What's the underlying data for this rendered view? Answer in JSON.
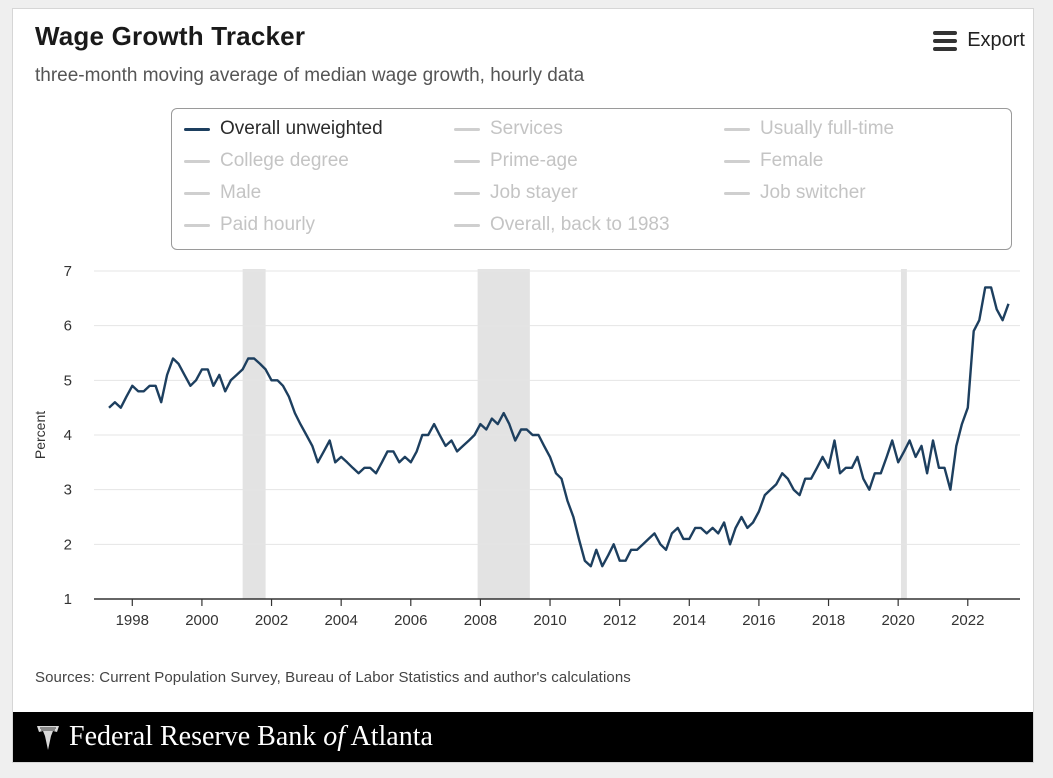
{
  "header": {
    "title": "Wage Growth Tracker",
    "subtitle": "three-month moving average of median wage growth, hourly data",
    "export_label": "Export",
    "export_icon": "hamburger-menu-icon"
  },
  "legend": {
    "items": [
      {
        "label": "Overall unweighted",
        "active": true
      },
      {
        "label": "Services",
        "active": false
      },
      {
        "label": "Usually full-time",
        "active": false
      },
      {
        "label": "College degree",
        "active": false
      },
      {
        "label": "Prime-age",
        "active": false
      },
      {
        "label": "Female",
        "active": false
      },
      {
        "label": "Male",
        "active": false
      },
      {
        "label": "Job stayer",
        "active": false
      },
      {
        "label": "Job switcher",
        "active": false
      },
      {
        "label": "Paid hourly",
        "active": false
      },
      {
        "label": "Overall, back to 1983",
        "active": false
      }
    ]
  },
  "colors": {
    "series": "#1d3f5f",
    "recession": "#e3e3e3",
    "grid": "#e5e5e5",
    "inactive_legend": "#cfcfcf"
  },
  "footer": {
    "source": "Sources: Current Population Survey, Bureau of Labor Statistics and author's calculations",
    "bank_name_prefix": "Federal Reserve Bank ",
    "bank_name_of": "of",
    "bank_name_suffix": " Atlanta",
    "logo_icon": "eagle-logo-icon"
  },
  "chart_data": {
    "type": "line",
    "title": "Wage Growth Tracker",
    "subtitle": "three-month moving average of median wage growth, hourly data",
    "xlabel": "",
    "ylabel": "Percent",
    "ylim": [
      1,
      7
    ],
    "xlim": [
      1996.9,
      2023.5
    ],
    "yticks": [
      1,
      2,
      3,
      4,
      5,
      6,
      7
    ],
    "xticks": [
      1998,
      2000,
      2002,
      2004,
      2006,
      2008,
      2010,
      2012,
      2014,
      2016,
      2018,
      2020,
      2022
    ],
    "grid": "horizontal",
    "legend_position": "top",
    "recessions": [
      [
        2001.17,
        2001.83
      ],
      [
        2007.92,
        2009.42
      ],
      [
        2020.08,
        2020.25
      ]
    ],
    "series": [
      {
        "name": "Overall unweighted",
        "points": [
          [
            1997.33,
            4.5
          ],
          [
            1997.5,
            4.6
          ],
          [
            1997.67,
            4.5
          ],
          [
            1997.83,
            4.7
          ],
          [
            1998.0,
            4.9
          ],
          [
            1998.17,
            4.8
          ],
          [
            1998.33,
            4.8
          ],
          [
            1998.5,
            4.9
          ],
          [
            1998.67,
            4.9
          ],
          [
            1998.83,
            4.6
          ],
          [
            1999.0,
            5.1
          ],
          [
            1999.17,
            5.4
          ],
          [
            1999.33,
            5.3
          ],
          [
            1999.5,
            5.1
          ],
          [
            1999.67,
            4.9
          ],
          [
            1999.83,
            5.0
          ],
          [
            2000.0,
            5.2
          ],
          [
            2000.17,
            5.2
          ],
          [
            2000.33,
            4.9
          ],
          [
            2000.5,
            5.1
          ],
          [
            2000.67,
            4.8
          ],
          [
            2000.83,
            5.0
          ],
          [
            2001.0,
            5.1
          ],
          [
            2001.17,
            5.2
          ],
          [
            2001.33,
            5.4
          ],
          [
            2001.5,
            5.4
          ],
          [
            2001.67,
            5.3
          ],
          [
            2001.83,
            5.2
          ],
          [
            2002.0,
            5.0
          ],
          [
            2002.17,
            5.0
          ],
          [
            2002.33,
            4.9
          ],
          [
            2002.5,
            4.7
          ],
          [
            2002.67,
            4.4
          ],
          [
            2002.83,
            4.2
          ],
          [
            2003.0,
            4.0
          ],
          [
            2003.17,
            3.8
          ],
          [
            2003.33,
            3.5
          ],
          [
            2003.5,
            3.7
          ],
          [
            2003.67,
            3.9
          ],
          [
            2003.83,
            3.5
          ],
          [
            2004.0,
            3.6
          ],
          [
            2004.17,
            3.5
          ],
          [
            2004.33,
            3.4
          ],
          [
            2004.5,
            3.3
          ],
          [
            2004.67,
            3.4
          ],
          [
            2004.83,
            3.4
          ],
          [
            2005.0,
            3.3
          ],
          [
            2005.17,
            3.5
          ],
          [
            2005.33,
            3.7
          ],
          [
            2005.5,
            3.7
          ],
          [
            2005.67,
            3.5
          ],
          [
            2005.83,
            3.6
          ],
          [
            2006.0,
            3.5
          ],
          [
            2006.17,
            3.7
          ],
          [
            2006.33,
            4.0
          ],
          [
            2006.5,
            4.0
          ],
          [
            2006.67,
            4.2
          ],
          [
            2006.83,
            4.0
          ],
          [
            2007.0,
            3.8
          ],
          [
            2007.17,
            3.9
          ],
          [
            2007.33,
            3.7
          ],
          [
            2007.5,
            3.8
          ],
          [
            2007.67,
            3.9
          ],
          [
            2007.83,
            4.0
          ],
          [
            2008.0,
            4.2
          ],
          [
            2008.17,
            4.1
          ],
          [
            2008.33,
            4.3
          ],
          [
            2008.5,
            4.2
          ],
          [
            2008.67,
            4.4
          ],
          [
            2008.83,
            4.2
          ],
          [
            2009.0,
            3.9
          ],
          [
            2009.17,
            4.1
          ],
          [
            2009.33,
            4.1
          ],
          [
            2009.5,
            4.0
          ],
          [
            2009.67,
            4.0
          ],
          [
            2009.83,
            3.8
          ],
          [
            2010.0,
            3.6
          ],
          [
            2010.17,
            3.3
          ],
          [
            2010.33,
            3.2
          ],
          [
            2010.5,
            2.8
          ],
          [
            2010.67,
            2.5
          ],
          [
            2010.83,
            2.1
          ],
          [
            2011.0,
            1.7
          ],
          [
            2011.17,
            1.6
          ],
          [
            2011.33,
            1.9
          ],
          [
            2011.5,
            1.6
          ],
          [
            2011.67,
            1.8
          ],
          [
            2011.83,
            2.0
          ],
          [
            2012.0,
            1.7
          ],
          [
            2012.17,
            1.7
          ],
          [
            2012.33,
            1.9
          ],
          [
            2012.5,
            1.9
          ],
          [
            2012.67,
            2.0
          ],
          [
            2012.83,
            2.1
          ],
          [
            2013.0,
            2.2
          ],
          [
            2013.17,
            2.0
          ],
          [
            2013.33,
            1.9
          ],
          [
            2013.5,
            2.2
          ],
          [
            2013.67,
            2.3
          ],
          [
            2013.83,
            2.1
          ],
          [
            2014.0,
            2.1
          ],
          [
            2014.17,
            2.3
          ],
          [
            2014.33,
            2.3
          ],
          [
            2014.5,
            2.2
          ],
          [
            2014.67,
            2.3
          ],
          [
            2014.83,
            2.2
          ],
          [
            2015.0,
            2.4
          ],
          [
            2015.17,
            2.0
          ],
          [
            2015.33,
            2.3
          ],
          [
            2015.5,
            2.5
          ],
          [
            2015.67,
            2.3
          ],
          [
            2015.83,
            2.4
          ],
          [
            2016.0,
            2.6
          ],
          [
            2016.17,
            2.9
          ],
          [
            2016.33,
            3.0
          ],
          [
            2016.5,
            3.1
          ],
          [
            2016.67,
            3.3
          ],
          [
            2016.83,
            3.2
          ],
          [
            2017.0,
            3.0
          ],
          [
            2017.17,
            2.9
          ],
          [
            2017.33,
            3.2
          ],
          [
            2017.5,
            3.2
          ],
          [
            2017.67,
            3.4
          ],
          [
            2017.83,
            3.6
          ],
          [
            2018.0,
            3.4
          ],
          [
            2018.17,
            3.9
          ],
          [
            2018.33,
            3.3
          ],
          [
            2018.5,
            3.4
          ],
          [
            2018.67,
            3.4
          ],
          [
            2018.83,
            3.6
          ],
          [
            2019.0,
            3.2
          ],
          [
            2019.17,
            3.0
          ],
          [
            2019.33,
            3.3
          ],
          [
            2019.5,
            3.3
          ],
          [
            2019.67,
            3.6
          ],
          [
            2019.83,
            3.9
          ],
          [
            2020.0,
            3.5
          ],
          [
            2020.17,
            3.7
          ],
          [
            2020.33,
            3.9
          ],
          [
            2020.5,
            3.6
          ],
          [
            2020.67,
            3.8
          ],
          [
            2020.83,
            3.3
          ],
          [
            2021.0,
            3.9
          ],
          [
            2021.17,
            3.4
          ],
          [
            2021.33,
            3.4
          ],
          [
            2021.5,
            3.0
          ],
          [
            2021.67,
            3.8
          ],
          [
            2021.83,
            4.2
          ],
          [
            2022.0,
            4.5
          ],
          [
            2022.17,
            5.9
          ],
          [
            2022.33,
            6.1
          ],
          [
            2022.5,
            6.7
          ],
          [
            2022.67,
            6.7
          ],
          [
            2022.83,
            6.3
          ],
          [
            2023.0,
            6.1
          ],
          [
            2023.17,
            6.4
          ]
        ]
      }
    ]
  }
}
